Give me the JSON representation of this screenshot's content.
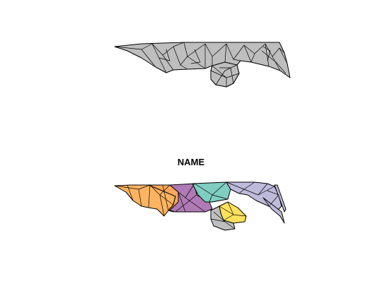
{
  "panels": [
    {
      "id": "geometry",
      "title": "",
      "fill": "#bebebe"
    },
    {
      "id": "name",
      "title": "NAME",
      "palette": [
        "#fdb462",
        "#ffa85c",
        "#b07ab6",
        "#80cdc1",
        "#bebada",
        "#ffe15c",
        "#bebebe"
      ]
    }
  ]
}
